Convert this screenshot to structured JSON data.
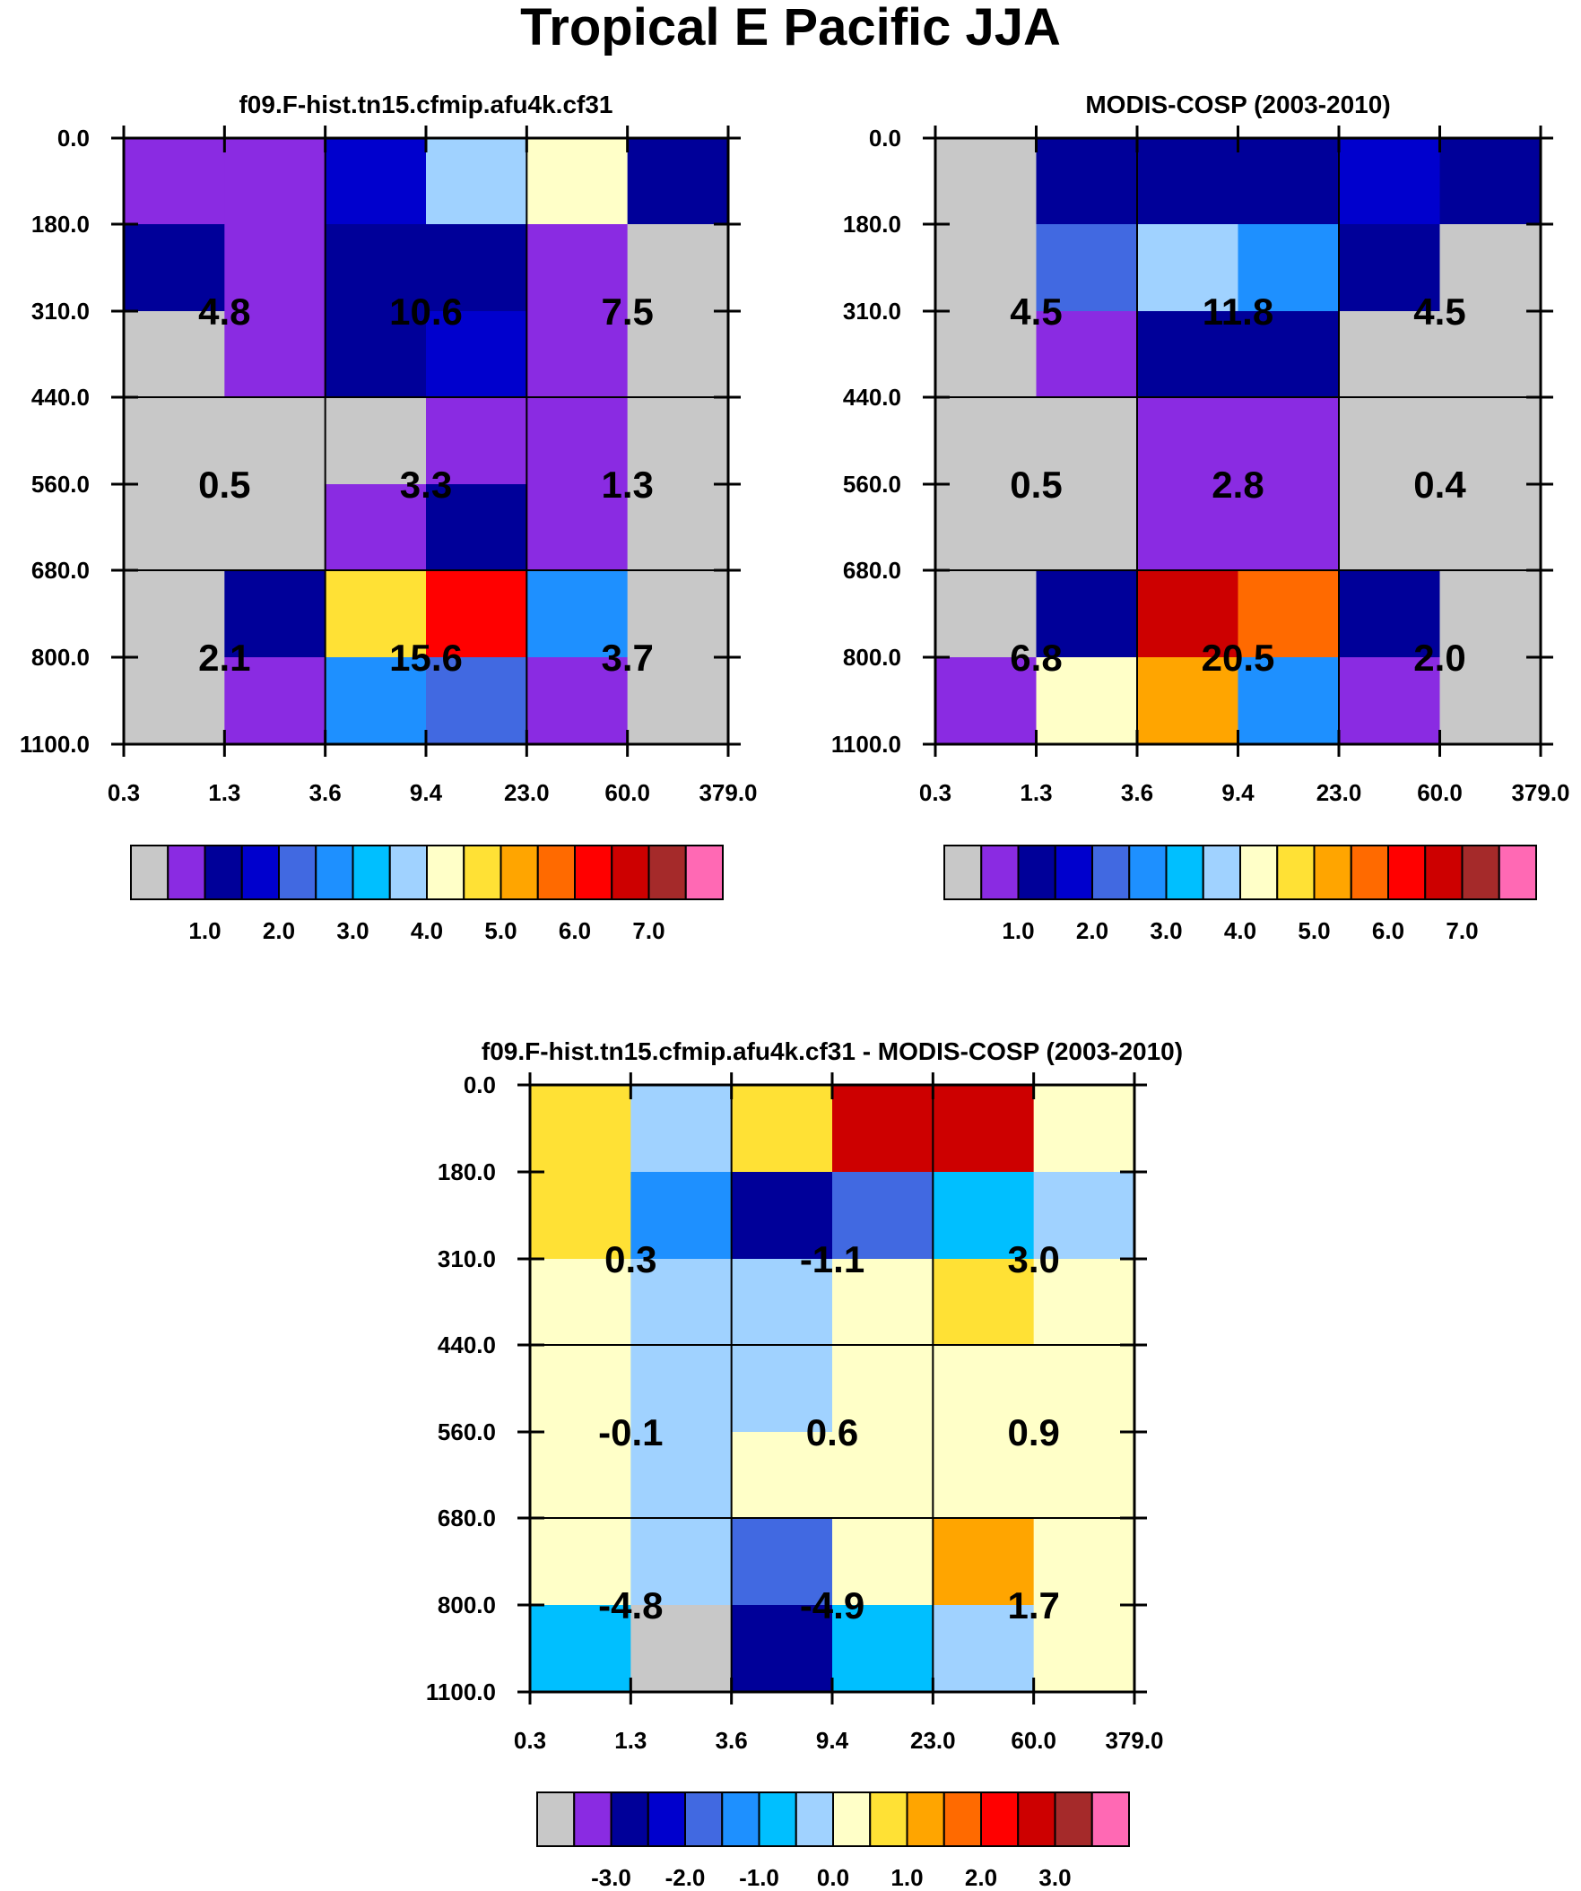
{
  "title": "Tropical E Pacific JJA",
  "palette": [
    "#c8c8c8",
    "#8a2be2",
    "#000099",
    "#0000cd",
    "#4169e1",
    "#1e90ff",
    "#00bfff",
    "#a0d2ff",
    "#ffffc8",
    "#ffe135",
    "#ffa500",
    "#ff6a00",
    "#ff0000",
    "#cd0000",
    "#a52a2a",
    "#ff69b4"
  ],
  "chart_data": [
    {
      "type": "heatmap",
      "title": "f09.F-hist.tn15.cfmip.afu4k.cf31",
      "x_tick_labels": [
        "0.3",
        "1.3",
        "3.6",
        "9.4",
        "23.0",
        "60.0",
        "379.0"
      ],
      "y_tick_labels": [
        "0.0",
        "180.0",
        "310.0",
        "440.0",
        "560.0",
        "680.0",
        "800.0",
        "1100.0"
      ],
      "cell_color_index": [
        [
          1,
          1,
          3,
          7,
          8,
          2
        ],
        [
          2,
          1,
          2,
          2,
          1,
          0
        ],
        [
          0,
          1,
          2,
          3,
          1,
          0
        ],
        [
          0,
          0,
          0,
          1,
          1,
          0
        ],
        [
          0,
          0,
          1,
          2,
          1,
          0
        ],
        [
          0,
          2,
          9,
          12,
          5,
          0
        ],
        [
          0,
          1,
          5,
          4,
          1,
          0
        ]
      ],
      "block_values": [
        [
          "4.8",
          "10.6",
          "7.5"
        ],
        [
          "0.5",
          "3.3",
          "1.3"
        ],
        [
          "2.1",
          "15.6",
          "3.7"
        ]
      ],
      "colorbar_labels": [
        "1.0",
        "2.0",
        "3.0",
        "4.0",
        "5.0",
        "6.0",
        "7.0"
      ],
      "colorbar_levels": [
        0.5,
        1.0,
        1.5,
        2.0,
        2.5,
        3.0,
        3.5,
        4.0,
        4.5,
        5.0,
        5.5,
        6.0,
        6.5,
        7.0
      ]
    },
    {
      "type": "heatmap",
      "title": "MODIS-COSP (2003-2010)",
      "x_tick_labels": [
        "0.3",
        "1.3",
        "3.6",
        "9.4",
        "23.0",
        "60.0",
        "379.0"
      ],
      "y_tick_labels": [
        "0.0",
        "180.0",
        "310.0",
        "440.0",
        "560.0",
        "680.0",
        "800.0",
        "1100.0"
      ],
      "cell_color_index": [
        [
          0,
          2,
          2,
          2,
          3,
          2
        ],
        [
          0,
          4,
          7,
          5,
          2,
          0
        ],
        [
          0,
          1,
          2,
          2,
          0,
          0
        ],
        [
          0,
          0,
          1,
          1,
          0,
          0
        ],
        [
          0,
          0,
          1,
          1,
          0,
          0
        ],
        [
          0,
          2,
          13,
          11,
          2,
          0
        ],
        [
          1,
          8,
          10,
          5,
          1,
          0
        ]
      ],
      "block_values": [
        [
          "4.5",
          "11.8",
          "4.5"
        ],
        [
          "0.5",
          "2.8",
          "0.4"
        ],
        [
          "6.8",
          "20.5",
          "2.0"
        ]
      ],
      "colorbar_labels": [
        "1.0",
        "2.0",
        "3.0",
        "4.0",
        "5.0",
        "6.0",
        "7.0"
      ],
      "colorbar_levels": [
        0.5,
        1.0,
        1.5,
        2.0,
        2.5,
        3.0,
        3.5,
        4.0,
        4.5,
        5.0,
        5.5,
        6.0,
        6.5,
        7.0
      ]
    },
    {
      "type": "heatmap",
      "title": "f09.F-hist.tn15.cfmip.afu4k.cf31 - MODIS-COSP (2003-2010)",
      "x_tick_labels": [
        "0.3",
        "1.3",
        "3.6",
        "9.4",
        "23.0",
        "60.0",
        "379.0"
      ],
      "y_tick_labels": [
        "0.0",
        "180.0",
        "310.0",
        "440.0",
        "560.0",
        "680.0",
        "800.0",
        "1100.0"
      ],
      "cell_color_index": [
        [
          9,
          7,
          9,
          13,
          13,
          8
        ],
        [
          9,
          5,
          2,
          4,
          6,
          7
        ],
        [
          8,
          7,
          7,
          8,
          9,
          8
        ],
        [
          8,
          7,
          7,
          8,
          8,
          8
        ],
        [
          8,
          7,
          8,
          8,
          8,
          8
        ],
        [
          8,
          7,
          4,
          8,
          10,
          8
        ],
        [
          6,
          0,
          2,
          6,
          7,
          8
        ]
      ],
      "block_values": [
        [
          "0.3",
          "-1.1",
          "3.0"
        ],
        [
          "-0.1",
          "0.6",
          "0.9"
        ],
        [
          "-4.8",
          "-4.9",
          "1.7"
        ]
      ],
      "colorbar_labels": [
        "-3.0",
        "-2.0",
        "-1.0",
        "0.0",
        "1.0",
        "2.0",
        "3.0"
      ],
      "colorbar_levels": [
        -3.0,
        -2.5,
        -2.0,
        -1.5,
        -1.0,
        -0.5,
        0.0,
        0.5,
        1.0,
        1.5,
        2.0,
        2.5,
        3.0,
        3.5
      ]
    }
  ]
}
